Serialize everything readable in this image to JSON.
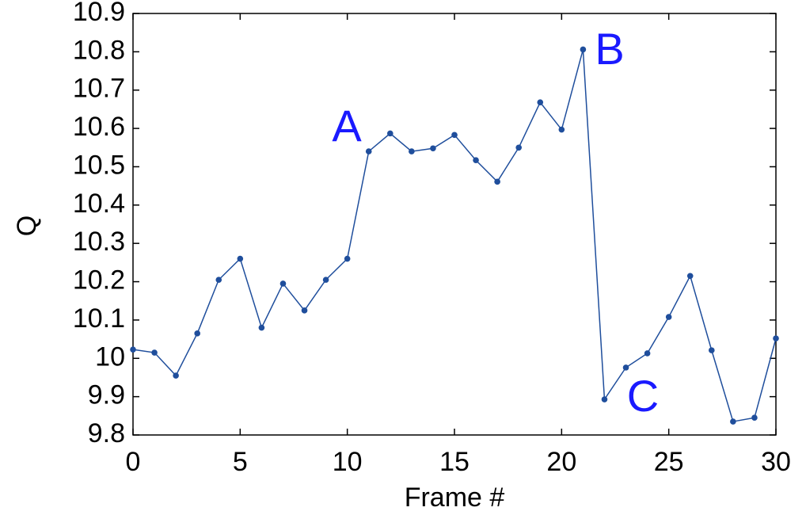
{
  "chart_data": {
    "type": "line",
    "x_label": "Frame #",
    "y_label": "Q",
    "annotations": [
      "A",
      "B",
      "C"
    ],
    "annotation_color": "#1a1aff",
    "x": [
      0,
      1,
      2,
      3,
      4,
      5,
      6,
      7,
      8,
      9,
      10,
      11,
      12,
      13,
      14,
      15,
      16,
      17,
      18,
      19,
      20,
      21,
      22,
      23,
      24,
      25,
      26,
      27,
      28,
      29,
      30
    ],
    "series": [
      {
        "color": "#1f4e9c",
        "values": [
          10.023,
          10.015,
          9.955,
          10.065,
          10.205,
          10.26,
          10.08,
          10.195,
          10.125,
          10.205,
          10.26,
          10.54,
          10.587,
          10.54,
          10.548,
          10.583,
          10.517,
          10.461,
          10.55,
          10.668,
          10.597,
          10.806,
          9.893,
          9.976,
          10.013,
          10.108,
          10.215,
          10.021,
          9.835,
          9.845,
          10.052
        ]
      }
    ],
    "xlim": [
      0,
      30
    ],
    "xticks": [
      0,
      5,
      10,
      15,
      20,
      25,
      30
    ],
    "ylim": [
      9.8,
      10.9
    ],
    "yticks": [
      9.8,
      9.9,
      10,
      10.1,
      10.2,
      10.3,
      10.4,
      10.5,
      10.6,
      10.7,
      10.8,
      10.9
    ],
    "grid": false
  }
}
